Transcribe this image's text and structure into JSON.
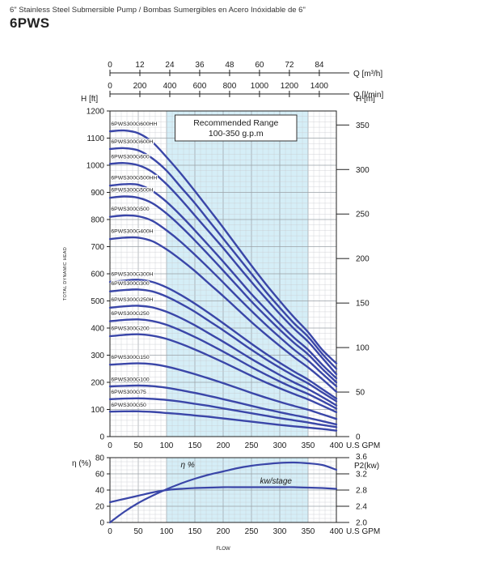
{
  "header": {
    "subtitle": "6\" Stainless Steel Submersible Pump / Bombas Sumergibles en Acero Inóxidable de 6\"",
    "model": "6PWS"
  },
  "chart_data": [
    {
      "type": "line",
      "name": "performance",
      "x": [
        0,
        25,
        50,
        75,
        100,
        125,
        150,
        175,
        200,
        225,
        250,
        275,
        300,
        325,
        350,
        375,
        400
      ],
      "xlim": [
        0,
        400
      ],
      "xticks": [
        0,
        50,
        100,
        150,
        200,
        250,
        300,
        350,
        400
      ],
      "xlabel": "U.S GPM",
      "ylim": [
        0,
        1200
      ],
      "yticks": [
        0,
        100,
        200,
        300,
        400,
        500,
        600,
        700,
        800,
        900,
        1000,
        1100,
        1200
      ],
      "ylabel": "H [ft]",
      "ylabel_side": "TOTAL DYNAMIC HEAD",
      "y2lim_m": [
        0,
        365.76
      ],
      "y2ticks": [
        0,
        50,
        100,
        150,
        200,
        250,
        300,
        350
      ],
      "y2label": "H [m]",
      "top_axis_1": {
        "label": "Q [m³/h]",
        "ticks": [
          0,
          12,
          24,
          36,
          48,
          60,
          72,
          84
        ],
        "gpm_per_unit": 4.403
      },
      "top_axis_2": {
        "label": "Q [l/min]",
        "ticks": [
          0,
          200,
          400,
          600,
          800,
          1000,
          1200,
          1400
        ],
        "gpm_per_unit": 0.26417
      },
      "shaded_range": [
        100,
        350
      ],
      "range_box": {
        "title": "Recommended Range",
        "value": "100-350 g.p.m"
      },
      "series": [
        {
          "name": "6PWS300G600HH",
          "values": [
            1125,
            1128,
            1118,
            1085,
            1030,
            970,
            905,
            838,
            770,
            700,
            630,
            563,
            500,
            440,
            385,
            320,
            270
          ]
        },
        {
          "name": "6PWS300G600H",
          "values": [
            1060,
            1063,
            1055,
            1025,
            980,
            920,
            860,
            795,
            730,
            665,
            600,
            535,
            475,
            418,
            368,
            305,
            250
          ]
        },
        {
          "name": "6PWS300G600",
          "values": [
            1005,
            1008,
            1000,
            975,
            930,
            875,
            815,
            755,
            695,
            632,
            570,
            510,
            452,
            398,
            350,
            290,
            230
          ]
        },
        {
          "name": "6PWS300G500HH",
          "values": [
            925,
            930,
            928,
            905,
            865,
            815,
            760,
            703,
            645,
            585,
            525,
            470,
            416,
            365,
            320,
            265,
            215
          ]
        },
        {
          "name": "6PWS300G500H",
          "values": [
            880,
            885,
            880,
            860,
            822,
            775,
            723,
            668,
            612,
            555,
            498,
            445,
            394,
            346,
            303,
            250,
            200
          ]
        },
        {
          "name": "6PWS300G500",
          "values": [
            810,
            815,
            812,
            795,
            760,
            718,
            670,
            620,
            568,
            515,
            463,
            413,
            366,
            321,
            280,
            232,
            185
          ]
        },
        {
          "name": "6PWS300G400H",
          "values": [
            728,
            733,
            733,
            720,
            690,
            652,
            610,
            564,
            518,
            470,
            422,
            377,
            334,
            293,
            255,
            212,
            165
          ]
        },
        {
          "name": "6PWS300G300H",
          "values": [
            570,
            575,
            578,
            570,
            550,
            522,
            490,
            455,
            418,
            380,
            342,
            306,
            272,
            240,
            210,
            175,
            140
          ]
        },
        {
          "name": "6PWS300G300",
          "values": [
            535,
            540,
            542,
            535,
            516,
            490,
            460,
            426,
            392,
            356,
            320,
            286,
            254,
            224,
            196,
            163,
            130
          ]
        },
        {
          "name": "6PWS300G250H",
          "values": [
            475,
            480,
            482,
            476,
            460,
            437,
            410,
            380,
            350,
            318,
            286,
            256,
            227,
            200,
            175,
            146,
            115
          ]
        },
        {
          "name": "6PWS300G250",
          "values": [
            425,
            430,
            432,
            426,
            412,
            391,
            367,
            341,
            313,
            285,
            256,
            229,
            203,
            179,
            157,
            131,
            103
          ]
        },
        {
          "name": "6PWS300G200",
          "values": [
            370,
            375,
            377,
            372,
            360,
            342,
            321,
            298,
            274,
            249,
            224,
            200,
            178,
            157,
            137,
            114,
            90
          ]
        },
        {
          "name": "6PWS300G150",
          "values": [
            265,
            268,
            270,
            267,
            258,
            245,
            230,
            214,
            197,
            179,
            161,
            144,
            128,
            113,
            99,
            82,
            65
          ]
        },
        {
          "name": "6PWS300G100",
          "values": [
            185,
            187,
            188,
            186,
            180,
            171,
            161,
            150,
            138,
            126,
            113,
            101,
            90,
            79,
            69,
            57,
            45
          ]
        },
        {
          "name": "6PWS300G75",
          "values": [
            138,
            140,
            141,
            139,
            135,
            129,
            121,
            113,
            104,
            95,
            86,
            77,
            68,
            60,
            52,
            43,
            35
          ]
        },
        {
          "name": "6PWS300G50",
          "values": [
            92,
            93,
            93,
            91,
            87,
            83,
            78,
            73,
            67,
            61,
            55,
            49,
            43,
            38,
            33,
            28,
            22
          ]
        }
      ]
    },
    {
      "type": "line",
      "name": "efficiency",
      "x": [
        0,
        25,
        50,
        75,
        100,
        125,
        150,
        175,
        200,
        225,
        250,
        275,
        300,
        325,
        350,
        375,
        400
      ],
      "xlim": [
        0,
        400
      ],
      "xticks": [
        0,
        50,
        100,
        150,
        200,
        250,
        300,
        350,
        400
      ],
      "xlabel": "U.S GPM",
      "bottom_label": "FLOW",
      "ylim": [
        0,
        80
      ],
      "yticks": [
        0,
        20,
        40,
        60,
        80
      ],
      "ylabel": "η (%)",
      "y2lim": [
        2.0,
        3.6
      ],
      "y2ticks": [
        "2.0",
        "2.4",
        "2.8",
        "3.2",
        "3.6"
      ],
      "y2label": "P2(kw)",
      "shaded_range": [
        100,
        350
      ],
      "series": [
        {
          "name": "η %",
          "axis": "left",
          "values": [
            0,
            13,
            24,
            33,
            41,
            48,
            54,
            59,
            63,
            67,
            70,
            72,
            73.5,
            74,
            73,
            71,
            65
          ]
        },
        {
          "name": "kw/stage",
          "axis": "right",
          "values": [
            2.5,
            2.58,
            2.66,
            2.74,
            2.8,
            2.83,
            2.85,
            2.86,
            2.87,
            2.87,
            2.87,
            2.87,
            2.87,
            2.87,
            2.86,
            2.85,
            2.83
          ]
        }
      ]
    }
  ]
}
